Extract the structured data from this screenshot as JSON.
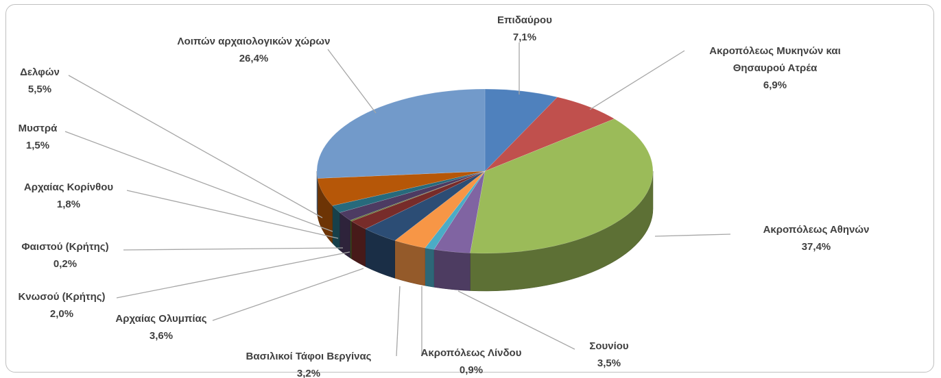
{
  "chart_data": {
    "type": "pie",
    "categories": [
      "Επιδαύρου",
      "Ακροπόλεως Μυκηνών και Θησαυρού Ατρέα",
      "Ακροπόλεως Αθηνών",
      "Σουνίου",
      "Ακροπόλεως Λίνδου",
      "Βασιλικοί Τάφοι Βεργίνας",
      "Αρχαίας Ολυμπίας",
      "Κνωσού (Κρήτης)",
      "Φαιστού (Κρήτης)",
      "Αρχαίας Κορίνθου",
      "Μυστρά",
      "Δελφών",
      "Λοιπών αρχαιολογικών χώρων"
    ],
    "values": [
      7.1,
      6.9,
      37.4,
      3.5,
      0.9,
      3.2,
      3.6,
      2.0,
      0.2,
      1.8,
      1.5,
      5.5,
      26.4
    ],
    "value_labels": [
      "7,1%",
      "6,9%",
      "37,4%",
      "3,5%",
      "0,9%",
      "3,2%",
      "3,6%",
      "2,0%",
      "0,2%",
      "1,8%",
      "1,5%",
      "5,5%",
      "26,4%"
    ],
    "colors": [
      "#4f81bd",
      "#c0504d",
      "#9bbb59",
      "#8064a2",
      "#4bacc6",
      "#f79646",
      "#2c4d75",
      "#772c2a",
      "#5f7530",
      "#4d3b62",
      "#276a7c",
      "#b65708",
      "#729aca"
    ]
  }
}
